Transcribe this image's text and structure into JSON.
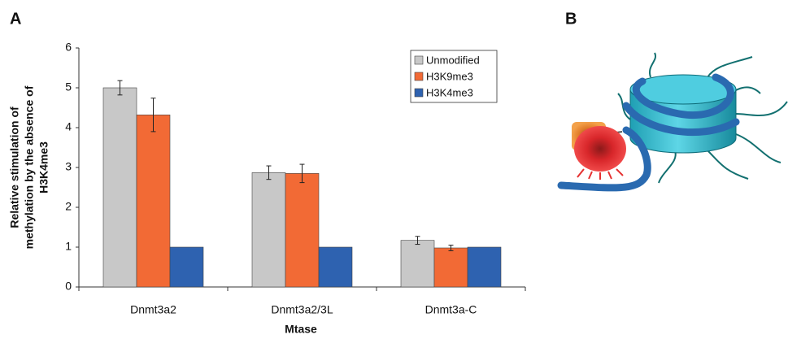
{
  "panel_labels": [
    "A",
    "B"
  ],
  "chart_data": {
    "type": "bar",
    "xlabel": "Mtase",
    "ylabel": [
      "Relative stimulation of",
      "methylation by the absence of",
      "H3K4me3"
    ],
    "categories": [
      "Dnmt3a2",
      "Dnmt3a2/3L",
      "Dnmt3a-C"
    ],
    "series": [
      {
        "name": "Unmodified",
        "color": "#c8c8c8",
        "values": [
          5.0,
          2.87,
          1.17
        ],
        "errors": [
          0.18,
          0.17,
          0.1
        ]
      },
      {
        "name": "H3K9me3",
        "color": "#f26a35",
        "values": [
          4.32,
          2.85,
          0.98
        ],
        "errors": [
          0.42,
          0.23,
          0.07
        ]
      },
      {
        "name": "H3K4me3",
        "color": "#2e62b0",
        "values": [
          1,
          1,
          1
        ]
      }
    ],
    "ylim": [
      0,
      6
    ],
    "yticks": [
      0,
      1,
      2,
      3,
      4,
      5,
      6
    ],
    "grid": false,
    "legend": "top-right"
  }
}
